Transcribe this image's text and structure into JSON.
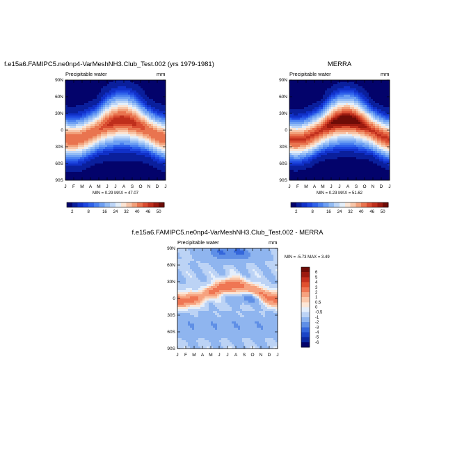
{
  "panels": [
    {
      "title": "f.e15a6.FAMIPC5.ne0np4-VarMeshNH3.Club_Test.002 (yrs 1979-1981)",
      "variable": "Precipitable water",
      "units": "mm",
      "stats": "MIN =   0.29 MAX =  47.07"
    },
    {
      "title": "MERRA",
      "variable": "Precipitable water",
      "units": "mm",
      "stats": "MIN =   0.23 MAX =  51.62"
    },
    {
      "title": "f.e15a6.FAMIPC5.ne0np4-VarMeshNH3.Club_Test.002 - MERRA",
      "variable": "Precipitable water",
      "units": "mm",
      "stats": "MIN =  -5.73 MAX =   3.49"
    }
  ],
  "chart_data": [
    {
      "type": "heatmap",
      "title": "f.e15a6.FAMIPC5.ne0np4-VarMeshNH3.Club_Test.002 (yrs 1979-1981)",
      "subtitle": "Precipitable water",
      "units": "mm",
      "x_ticks": [
        "J",
        "F",
        "M",
        "A",
        "M",
        "J",
        "J",
        "A",
        "S",
        "O",
        "N",
        "D",
        "J"
      ],
      "y_ticks": [
        "90N",
        "60N",
        "30N",
        "0",
        "30S",
        "60S",
        "90S"
      ],
      "ylim": [
        -90,
        90
      ],
      "xlim": [
        0,
        12
      ],
      "colorbar_labels": [
        "2",
        "8",
        "16",
        "24",
        "32",
        "40",
        "46",
        "50"
      ],
      "colorbar_levels": [
        2,
        4,
        6,
        8,
        10,
        12,
        16,
        20,
        24,
        28,
        32,
        36,
        40,
        44,
        46,
        48,
        50
      ],
      "colorbar_colors": [
        "#03036b",
        "#0a1f9c",
        "#1030c8",
        "#1d46e0",
        "#2f62ea",
        "#4a80f0",
        "#6d9ff3",
        "#93bcf5",
        "#bcd5f7",
        "#e3eef9",
        "#fbe4d3",
        "#f7c5a8",
        "#f2a07a",
        "#e9744f",
        "#d94c31",
        "#bf2f1c",
        "#9c1a0f",
        "#6e0c07"
      ],
      "value_range": [
        0.29,
        47.07
      ]
    },
    {
      "type": "heatmap",
      "title": "MERRA",
      "subtitle": "Precipitable water",
      "units": "mm",
      "x_ticks": [
        "J",
        "F",
        "M",
        "A",
        "M",
        "J",
        "J",
        "A",
        "S",
        "O",
        "N",
        "D",
        "J"
      ],
      "y_ticks": [
        "90N",
        "60N",
        "30N",
        "0",
        "30S",
        "60S",
        "90S"
      ],
      "ylim": [
        -90,
        90
      ],
      "xlim": [
        0,
        12
      ],
      "colorbar_labels": [
        "2",
        "8",
        "16",
        "24",
        "32",
        "40",
        "46",
        "50"
      ],
      "colorbar_levels": [
        2,
        4,
        6,
        8,
        10,
        12,
        16,
        20,
        24,
        28,
        32,
        36,
        40,
        44,
        46,
        48,
        50
      ],
      "colorbar_colors": [
        "#03036b",
        "#0a1f9c",
        "#1030c8",
        "#1d46e0",
        "#2f62ea",
        "#4a80f0",
        "#6d9ff3",
        "#93bcf5",
        "#bcd5f7",
        "#e3eef9",
        "#fbe4d3",
        "#f7c5a8",
        "#f2a07a",
        "#e9744f",
        "#d94c31",
        "#bf2f1c",
        "#9c1a0f",
        "#6e0c07"
      ],
      "value_range": [
        0.23,
        51.62
      ]
    },
    {
      "type": "heatmap",
      "title": "f.e15a6.FAMIPC5.ne0np4-VarMeshNH3.Club_Test.002 - MERRA",
      "subtitle": "Precipitable water",
      "units": "mm",
      "x_ticks": [
        "J",
        "F",
        "M",
        "A",
        "M",
        "J",
        "J",
        "A",
        "S",
        "O",
        "N",
        "D",
        "J"
      ],
      "y_ticks": [
        "90N",
        "60N",
        "30N",
        "0",
        "30S",
        "60S",
        "90S"
      ],
      "ylim": [
        -90,
        90
      ],
      "xlim": [
        0,
        12
      ],
      "colorbar_labels": [
        "6",
        "5",
        "4",
        "3",
        "2",
        "1",
        "0.5",
        "0",
        "-0.5",
        "-1",
        "-2",
        "-3",
        "-4",
        "-5",
        "-6"
      ],
      "colorbar_levels": [
        -6,
        -5,
        -4,
        -3,
        -2,
        -1,
        -0.5,
        0,
        0.5,
        1,
        2,
        3,
        4,
        5,
        6
      ],
      "colorbar_colors": [
        "#6e0c07",
        "#9c1a0f",
        "#c5301d",
        "#e0502f",
        "#ef7653",
        "#f6a27f",
        "#fac8ab",
        "#fce6d6",
        "#e4eefb",
        "#bcd3f5",
        "#8fb5ef",
        "#5f8fe6",
        "#3466db",
        "#1b45c6",
        "#0b28a0",
        "#03036b"
      ],
      "value_range": [
        -5.73,
        3.49
      ]
    }
  ]
}
